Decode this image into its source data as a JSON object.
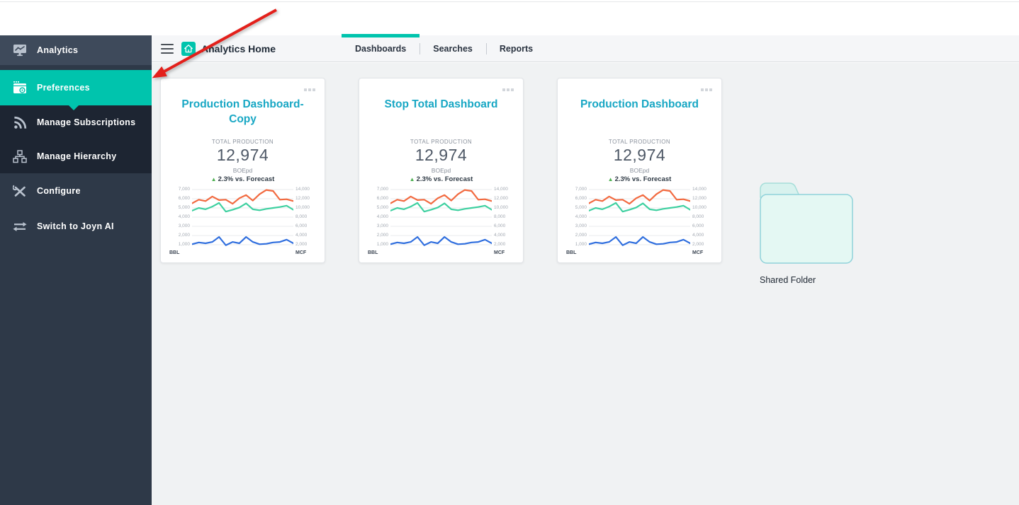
{
  "sidebar": {
    "items": [
      {
        "label": "Analytics"
      },
      {
        "label": "Preferences"
      },
      {
        "label": "Manage Subscriptions"
      },
      {
        "label": "Manage Hierarchy"
      },
      {
        "label": "Configure"
      },
      {
        "label": "Switch to Joyn AI"
      }
    ],
    "active_item": "Preferences"
  },
  "header": {
    "title": "Analytics Home",
    "tabs": [
      {
        "label": "Dashboards"
      },
      {
        "label": "Searches"
      },
      {
        "label": "Reports"
      }
    ],
    "active_tab": "Dashboards"
  },
  "cards": [
    {
      "title": "Production Dashboard-Copy",
      "stat_label": "TOTAL PRODUCTION",
      "stat_value": "12,974",
      "stat_unit": "BOEpd",
      "delta": "2.3% vs. Forecast",
      "delta_direction": "up"
    },
    {
      "title": "Stop Total Dashboard",
      "stat_label": "TOTAL PRODUCTION",
      "stat_value": "12,974",
      "stat_unit": "BOEpd",
      "delta": "2.3% vs. Forecast",
      "delta_direction": "up"
    },
    {
      "title": "Production Dashboard",
      "stat_label": "TOTAL PRODUCTION",
      "stat_value": "12,974",
      "stat_unit": "BOEpd",
      "delta": "2.3% vs. Forecast",
      "delta_direction": "up"
    }
  ],
  "delta_arrow_glyph": "▲",
  "chart_data": {
    "type": "line",
    "title": "",
    "left_axis_label": "BBL",
    "right_axis_label": "MCF",
    "left_ticks": [
      "7,000",
      "6,000",
      "5,000",
      "4,000",
      "3,000",
      "2,000",
      "1,000"
    ],
    "right_ticks": [
      "14,000",
      "12,000",
      "10,000",
      "8,000",
      "6,000",
      "4,000",
      "2,000"
    ],
    "left_range": [
      1000,
      7000
    ],
    "right_range": [
      2000,
      14000
    ],
    "grid": true,
    "legend": false,
    "series": [
      {
        "name": "bbl-upper",
        "color": "#f2693f",
        "axis": "left",
        "values": [
          5500,
          5900,
          5750,
          6250,
          5850,
          5900,
          5450,
          6050,
          6400,
          5800,
          6500,
          6950,
          6850,
          5900,
          5950,
          5750
        ]
      },
      {
        "name": "bbl-mid",
        "color": "#3ed0a0",
        "axis": "left",
        "values": [
          4700,
          5000,
          4850,
          5150,
          5550,
          4600,
          4800,
          5050,
          5500,
          4850,
          4750,
          4900,
          5000,
          5100,
          5250,
          4800
        ]
      },
      {
        "name": "mcf-lower",
        "color": "#2f6ede",
        "axis": "left",
        "values": [
          1050,
          1250,
          1150,
          1300,
          1850,
          950,
          1300,
          1150,
          1850,
          1300,
          1050,
          1100,
          1250,
          1300,
          1550,
          1150
        ]
      }
    ]
  },
  "folder": {
    "label": "Shared Folder"
  },
  "colors": {
    "accent_teal": "#00c4ad",
    "card_title_cyan": "#18a7c4",
    "delta_green": "#4caf50",
    "arrow_red": "#e3201b",
    "sidebar_bg": "#2e3948",
    "sidebar_group_bg": "#1d2532",
    "sidebar_row_bg": "#3e4a5b"
  }
}
